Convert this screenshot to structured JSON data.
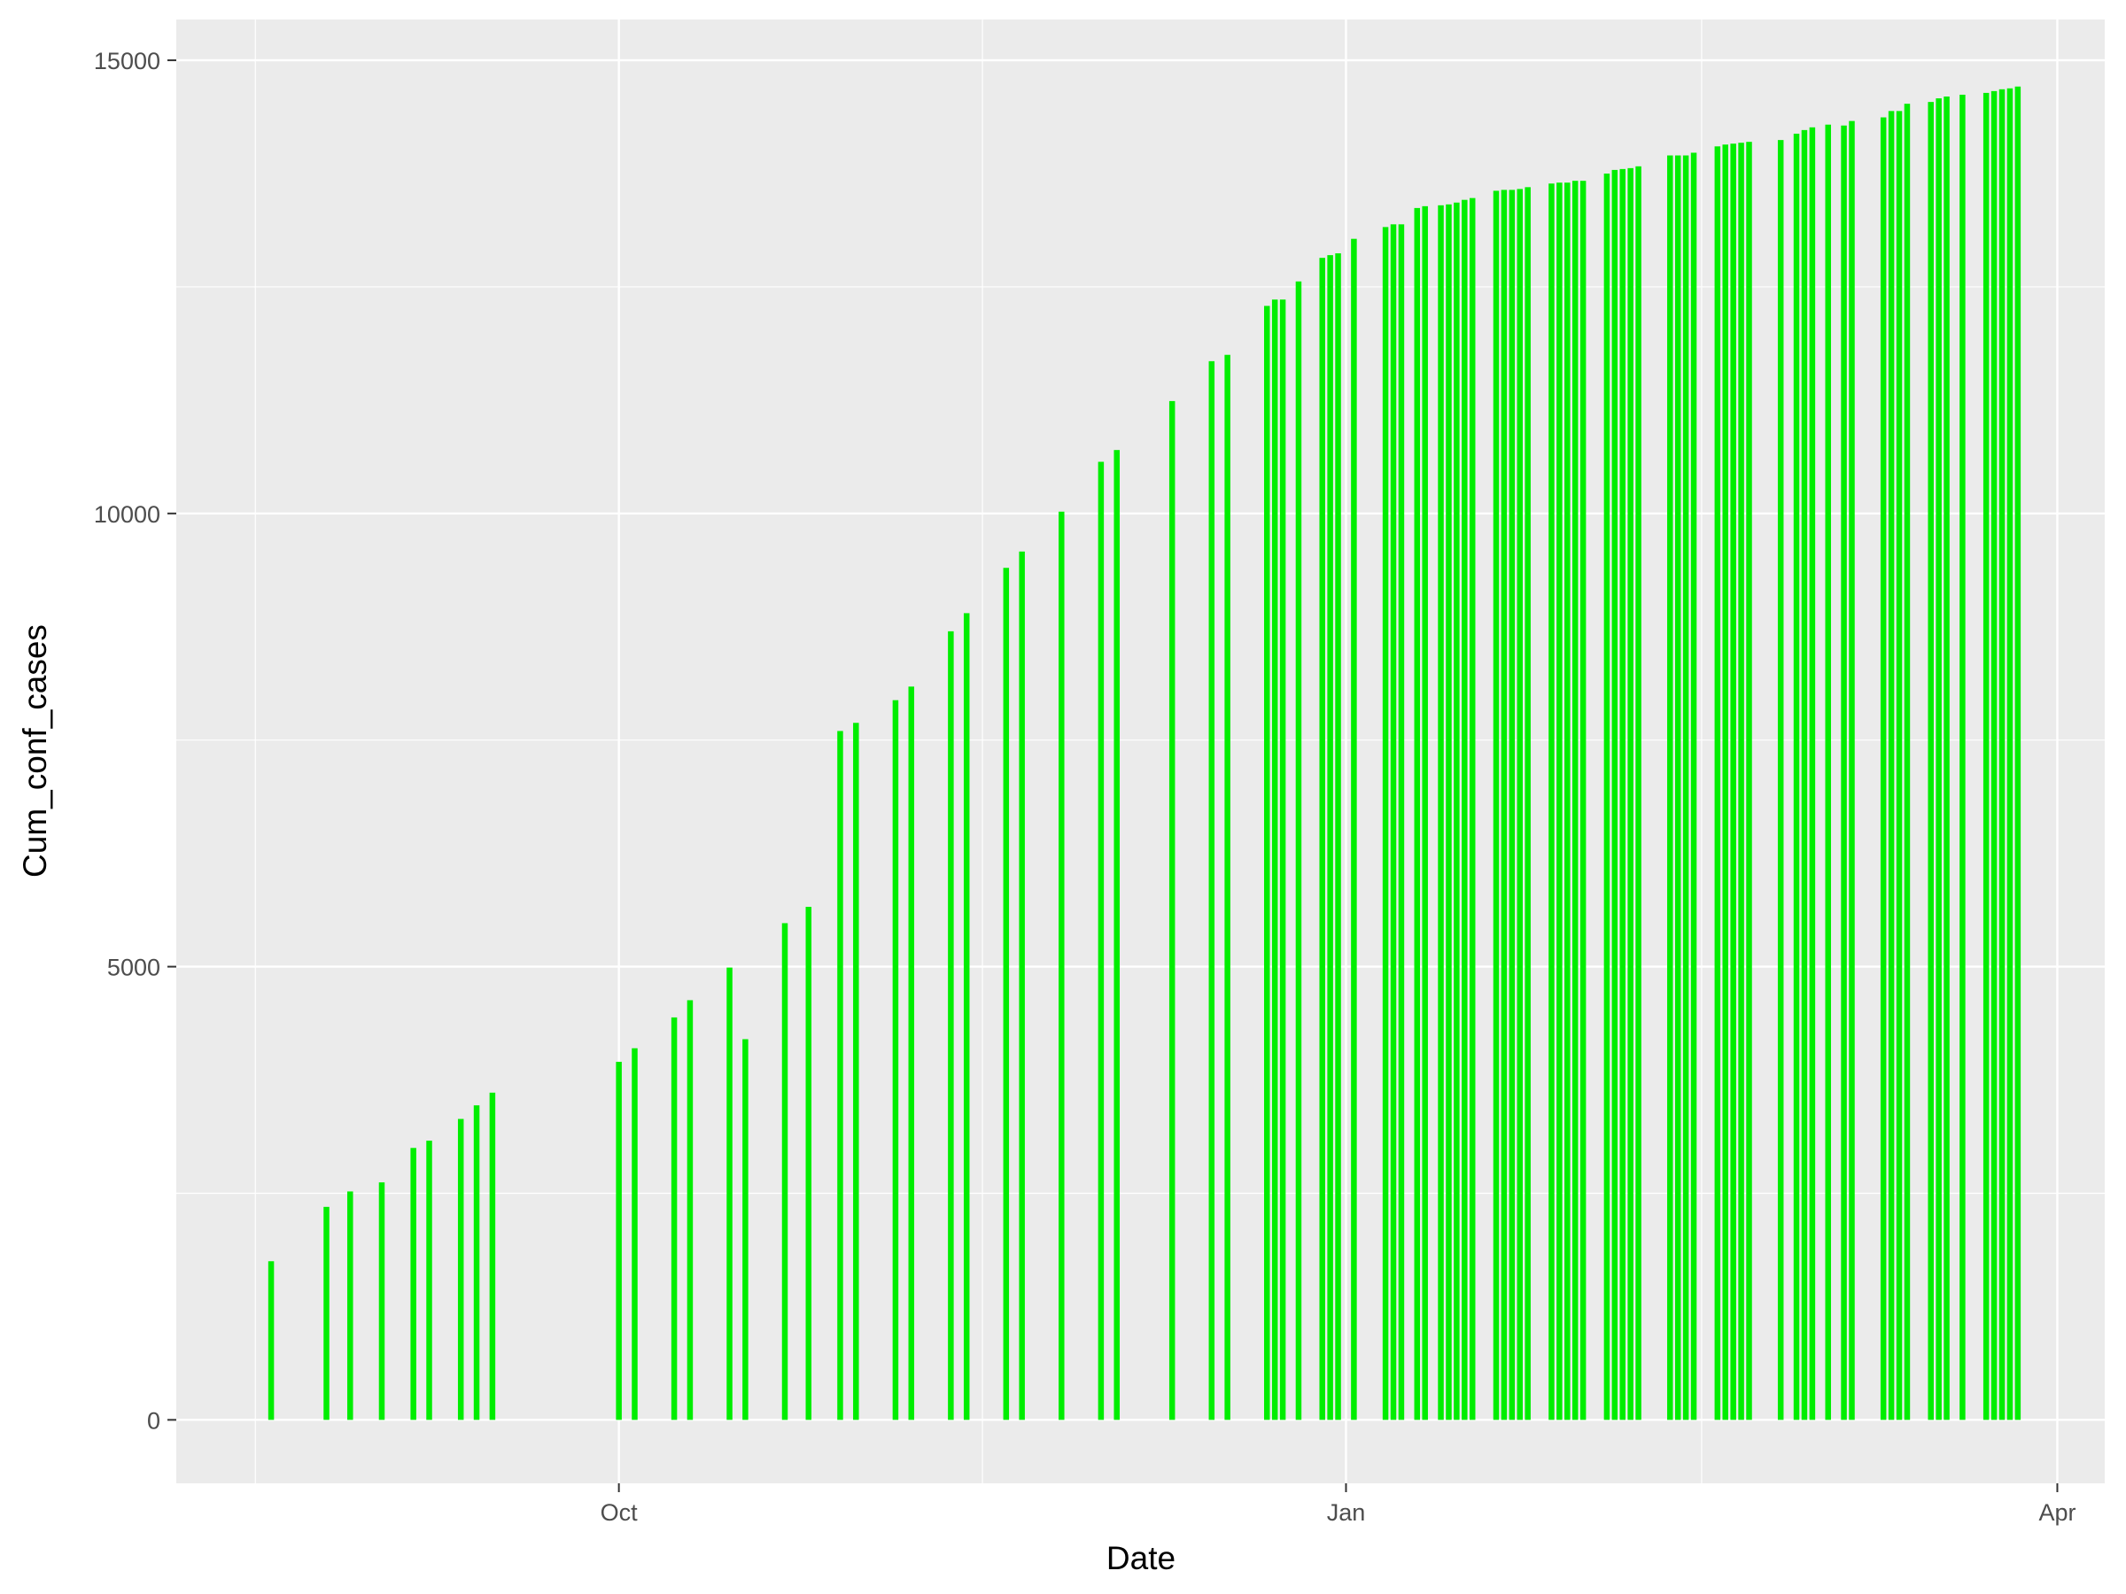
{
  "chart_data": {
    "type": "bar",
    "xlabel": "Date",
    "ylabel": "Cum_conf_cases",
    "x_ticks": [
      {
        "date": "2020-10-01",
        "label": "Oct"
      },
      {
        "date": "2021-01-01",
        "label": "Jan"
      },
      {
        "date": "2021-04-01",
        "label": "Apr"
      }
    ],
    "y_ticks": [
      0,
      5000,
      10000,
      15000
    ],
    "xlim": [
      "2020-08-06",
      "2021-04-07"
    ],
    "ylim": [
      -700,
      15450
    ],
    "grid": true,
    "colors": {
      "bar": "#00ee00",
      "panel": "#ebebeb",
      "grid": "#ffffff"
    },
    "x": [
      "2020-08-18",
      "2020-08-25",
      "2020-08-28",
      "2020-09-01",
      "2020-09-05",
      "2020-09-07",
      "2020-09-11",
      "2020-09-13",
      "2020-09-15",
      "2020-10-01",
      "2020-10-03",
      "2020-10-08",
      "2020-10-10",
      "2020-10-15",
      "2020-10-17",
      "2020-10-22",
      "2020-10-25",
      "2020-10-29",
      "2020-10-31",
      "2020-11-05",
      "2020-11-07",
      "2020-11-12",
      "2020-11-14",
      "2020-11-19",
      "2020-11-21",
      "2020-11-26",
      "2020-12-01",
      "2020-12-03",
      "2020-12-10",
      "2020-12-15",
      "2020-12-17",
      "2020-12-22",
      "2020-12-23",
      "2020-12-24",
      "2020-12-26",
      "2020-12-29",
      "2020-12-30",
      "2020-12-31",
      "2021-01-02",
      "2021-01-06",
      "2021-01-07",
      "2021-01-08",
      "2021-01-10",
      "2021-01-11",
      "2021-01-13",
      "2021-01-14",
      "2021-01-15",
      "2021-01-16",
      "2021-01-17",
      "2021-01-20",
      "2021-01-21",
      "2021-01-22",
      "2021-01-23",
      "2021-01-24",
      "2021-01-27",
      "2021-01-28",
      "2021-01-29",
      "2021-01-30",
      "2021-01-31",
      "2021-02-03",
      "2021-02-04",
      "2021-02-05",
      "2021-02-06",
      "2021-02-07",
      "2021-02-11",
      "2021-02-12",
      "2021-02-13",
      "2021-02-14",
      "2021-02-17",
      "2021-02-18",
      "2021-02-19",
      "2021-02-20",
      "2021-02-21",
      "2021-02-25",
      "2021-02-27",
      "2021-02-28",
      "2021-03-01",
      "2021-03-03",
      "2021-03-05",
      "2021-03-06",
      "2021-03-10",
      "2021-03-11",
      "2021-03-12",
      "2021-03-13",
      "2021-03-16",
      "2021-03-17",
      "2021-03-18",
      "2021-03-20",
      "2021-03-23",
      "2021-03-24",
      "2021-03-25",
      "2021-03-26",
      "2021-03-27"
    ],
    "values": [
      1750,
      2350,
      2520,
      2620,
      3000,
      3080,
      3320,
      3470,
      3610,
      3950,
      4100,
      4440,
      4630,
      4990,
      4200,
      5480,
      5660,
      7600,
      7690,
      7940,
      8090,
      8700,
      8900,
      9400,
      9580,
      10020,
      10570,
      10700,
      11240,
      11680,
      11750,
      12290,
      12360,
      12360,
      12560,
      12820,
      12850,
      12870,
      13030,
      13160,
      13190,
      13190,
      13370,
      13390,
      13400,
      13410,
      13430,
      13460,
      13480,
      13560,
      13570,
      13570,
      13580,
      13600,
      13640,
      13650,
      13650,
      13670,
      13670,
      13750,
      13790,
      13800,
      13810,
      13830,
      13950,
      13950,
      13950,
      13980,
      14050,
      14070,
      14080,
      14090,
      14100,
      14120,
      14190,
      14230,
      14260,
      14290,
      14280,
      14330,
      14370,
      14440,
      14440,
      14520,
      14540,
      14580,
      14600,
      14620,
      14640,
      14660,
      14680,
      14690,
      14710
    ]
  }
}
